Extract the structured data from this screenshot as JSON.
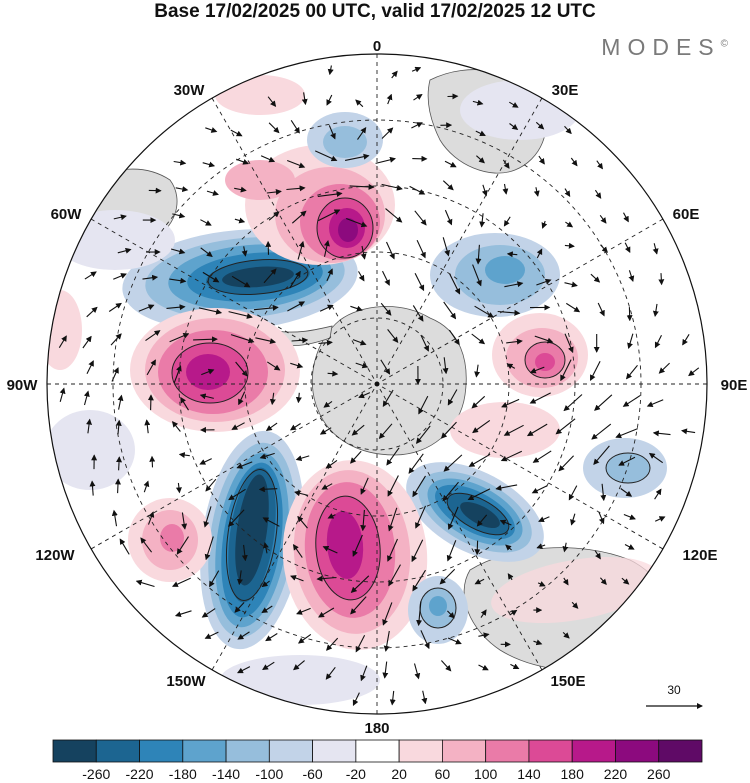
{
  "title": "Base 17/02/2025 00 UTC, valid 17/02/2025 12 UTC",
  "brand": "MODES",
  "brand_mark": "©",
  "longitude_labels": [
    {
      "id": "0",
      "text": "0"
    },
    {
      "id": "30E",
      "text": "30E"
    },
    {
      "id": "60E",
      "text": "60E"
    },
    {
      "id": "90E",
      "text": "90E"
    },
    {
      "id": "120E",
      "text": "120E"
    },
    {
      "id": "150E",
      "text": "150E"
    },
    {
      "id": "180",
      "text": "180"
    },
    {
      "id": "150W",
      "text": "150W"
    },
    {
      "id": "120W",
      "text": "120W"
    },
    {
      "id": "90W",
      "text": "90W"
    },
    {
      "id": "60W",
      "text": "60W"
    },
    {
      "id": "30W",
      "text": "30W"
    }
  ],
  "reference_vector": {
    "label": "30"
  },
  "colorbar": {
    "ticks": [
      "-260",
      "-220",
      "-180",
      "-140",
      "-100",
      "-60",
      "-20",
      "20",
      "60",
      "100",
      "140",
      "180",
      "220",
      "260"
    ],
    "colors": [
      "#15425f",
      "#1c6591",
      "#2e84b8",
      "#5ea3cd",
      "#96bedc",
      "#c2d3e8",
      "#e5e5f1",
      "#ffffff",
      "#f9d9de",
      "#f4b2c4",
      "#ea7ba8",
      "#dc4a96",
      "#b7198a",
      "#8c0a7e",
      "#5f0a66"
    ]
  },
  "colors": {
    "land": "#dcdcdc",
    "coast": "#555555",
    "grid": "#222222",
    "arrow": "#111111"
  }
}
